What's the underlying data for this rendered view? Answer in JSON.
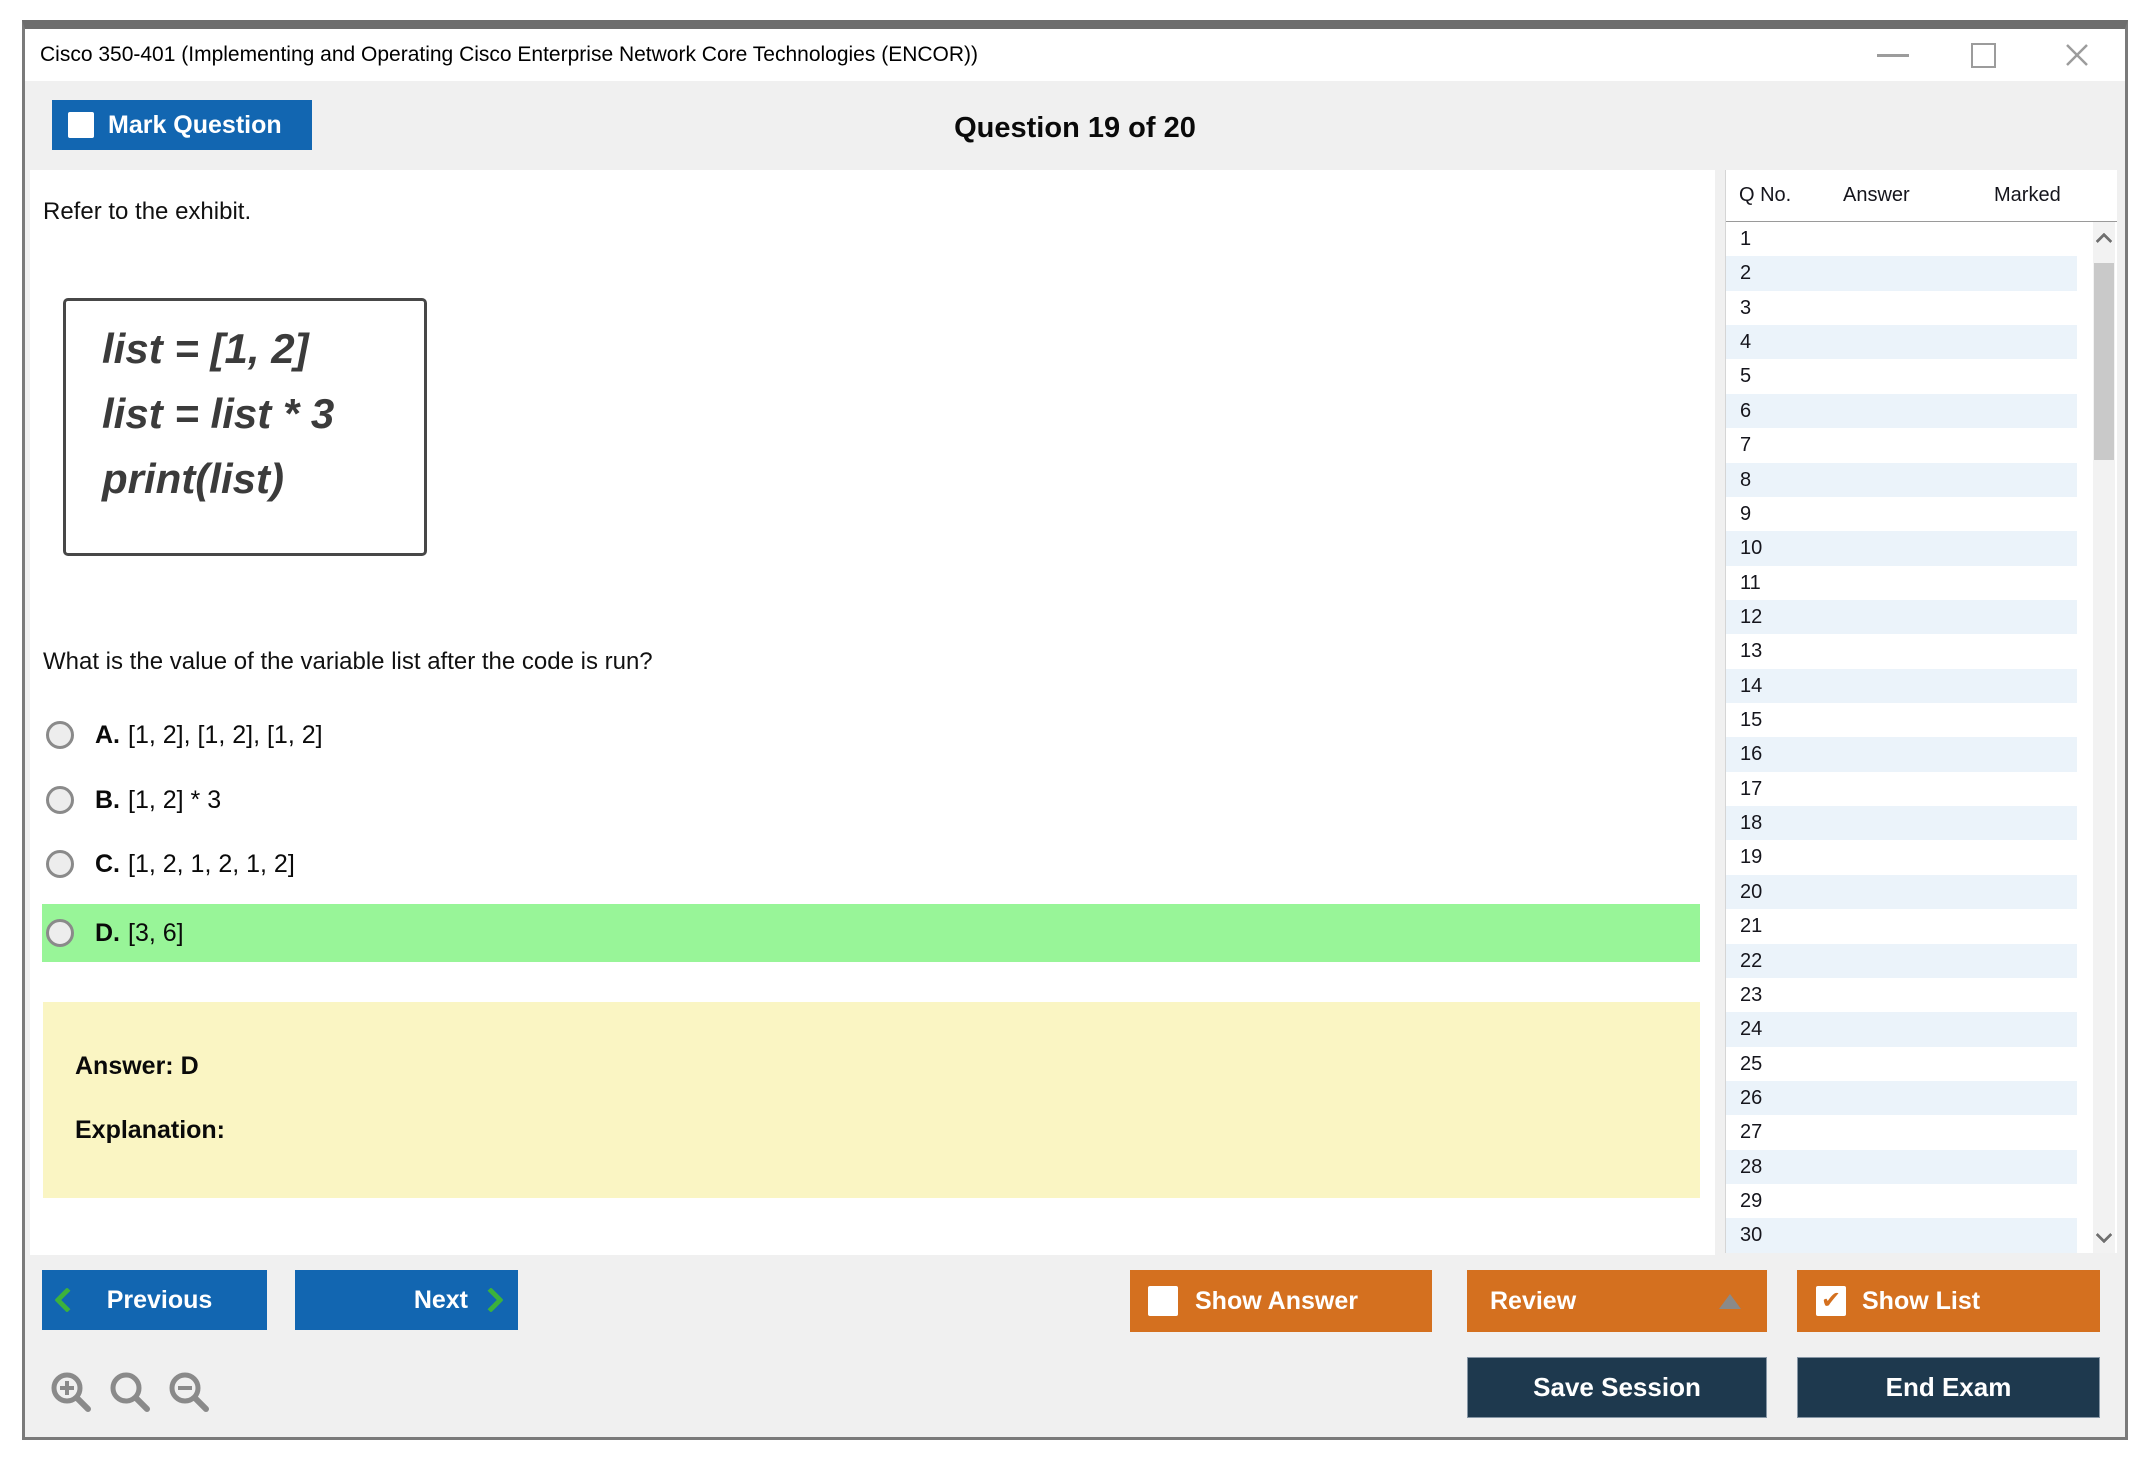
{
  "window": {
    "title": "Cisco 350-401 (Implementing and Operating Cisco Enterprise Network Core Technologies (ENCOR))",
    "controls": {
      "minimize": "minimize",
      "maximize": "maximize",
      "close": "close"
    }
  },
  "header": {
    "mark_question_label": "Mark Question",
    "mark_question_checked": false,
    "question_counter": "Question 19 of 20"
  },
  "main": {
    "refer_text": "Refer to the exhibit.",
    "exhibit_lines": [
      "list = [1, 2]",
      "list = list * 3",
      "print(list)"
    ],
    "question": "What is the value of the variable list after the code is run?",
    "options": [
      {
        "letter": "A.",
        "text": "[1, 2], [1, 2], [1, 2]",
        "highlighted": false
      },
      {
        "letter": "B.",
        "text": "[1, 2] * 3",
        "highlighted": false
      },
      {
        "letter": "C.",
        "text": "[1, 2, 1, 2, 1, 2]",
        "highlighted": false
      },
      {
        "letter": "D.",
        "text": "[3, 6]",
        "highlighted": true
      }
    ],
    "answer_box": {
      "answer_label": "Answer: D",
      "explanation_label": "Explanation:"
    }
  },
  "sidebar": {
    "columns": [
      "Q No.",
      "Answer",
      "Marked"
    ],
    "row_numbers": [
      "1",
      "2",
      "3",
      "4",
      "5",
      "6",
      "7",
      "8",
      "9",
      "10",
      "11",
      "12",
      "13",
      "14",
      "15",
      "16",
      "17",
      "18",
      "19",
      "20",
      "21",
      "22",
      "23",
      "24",
      "25",
      "26",
      "27",
      "28",
      "29",
      "30"
    ],
    "answer_cells_empty": "",
    "marked_cells_empty": ""
  },
  "toolbar": {
    "previous_label": "Previous",
    "next_label": "Next",
    "show_answer_label": "Show Answer",
    "show_answer_checked": false,
    "review_label": "Review",
    "show_list_label": "Show List",
    "show_list_checked": true,
    "save_session_label": "Save Session",
    "end_exam_label": "End Exam"
  },
  "icons": {
    "zoom_in": "zoom-in-magnifier",
    "zoom": "magnifier",
    "zoom_out": "zoom-out-magnifier",
    "check": "✔"
  },
  "colors": {
    "accent_blue": "#1266b1",
    "accent_orange": "#d4701f",
    "accent_navy": "#1e394e",
    "highlight_green": "#98f598",
    "highlight_yellow": "#faf5c3",
    "stripe_blue": "#ebf3fa",
    "chevron_green": "#3cb23c",
    "bg_gray": "#f0f0f0"
  }
}
